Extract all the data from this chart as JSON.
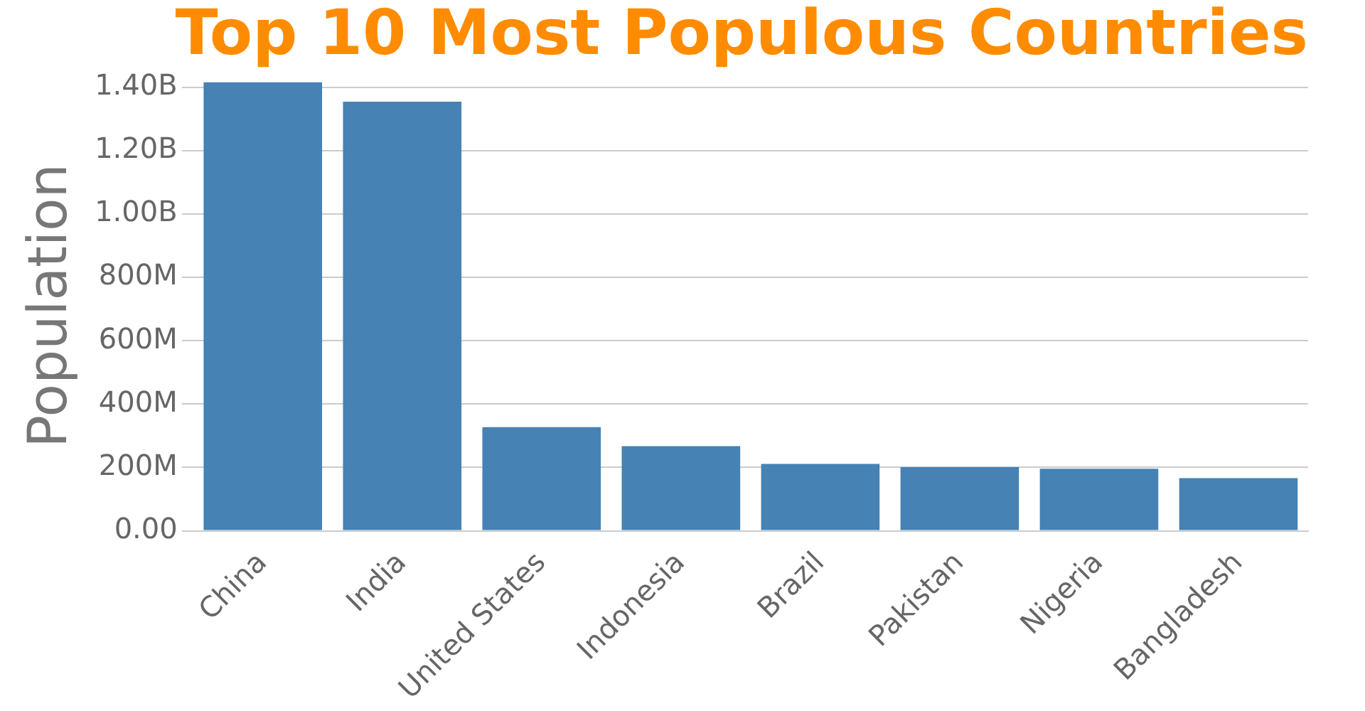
{
  "chart_data": {
    "type": "bar",
    "title": "Top 10 Most Populous Countries",
    "ylabel": "Population",
    "categories": [
      "China",
      "India",
      "United States",
      "Indonesia",
      "Brazil",
      "Pakistan",
      "Nigeria",
      "Bangladesh"
    ],
    "values": [
      1415000000,
      1354000000,
      327000000,
      267000000,
      211000000,
      201000000,
      196000000,
      166000000
    ],
    "color": "#4682b4",
    "ylim": [
      0,
      1420000000
    ],
    "yticks": [
      {
        "value": 0,
        "label": "0.00"
      },
      {
        "value": 200000000,
        "label": "200M"
      },
      {
        "value": 400000000,
        "label": "400M"
      },
      {
        "value": 600000000,
        "label": "600M"
      },
      {
        "value": 800000000,
        "label": "800M"
      },
      {
        "value": 1000000000,
        "label": "1.00B"
      },
      {
        "value": 1200000000,
        "label": "1.20B"
      },
      {
        "value": 1400000000,
        "label": "1.40B"
      }
    ],
    "grid": "y",
    "legend": false
  }
}
